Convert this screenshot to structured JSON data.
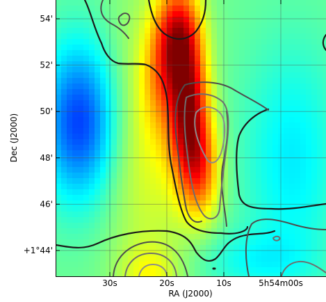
{
  "chart_data": {
    "type": "heatmap",
    "title": "",
    "xlabel": "RA (J2000)",
    "ylabel": "Dec (J2000)",
    "x_ticks": [
      {
        "label": "30s",
        "value_s": 30
      },
      {
        "label": "20s",
        "value_s": 20
      },
      {
        "label": "10s",
        "value_s": 10
      },
      {
        "label": "5h54m00s",
        "value_s": 0
      }
    ],
    "y_ticks": [
      {
        "label": "54'",
        "value_arcmin": 54
      },
      {
        "label": "52'",
        "value_arcmin": 52
      },
      {
        "label": "50'",
        "value_arcmin": 50
      },
      {
        "label": "48'",
        "value_arcmin": 48
      },
      {
        "label": "46'",
        "value_arcmin": 46
      },
      {
        "label": "+1°44'",
        "value_arcmin": 44
      }
    ],
    "grid": true,
    "colormap": "jet",
    "contour_colors": [
      "#1a1a1a",
      "#4d4d4d",
      "#6e6e6e",
      "#8c8c8c"
    ]
  }
}
